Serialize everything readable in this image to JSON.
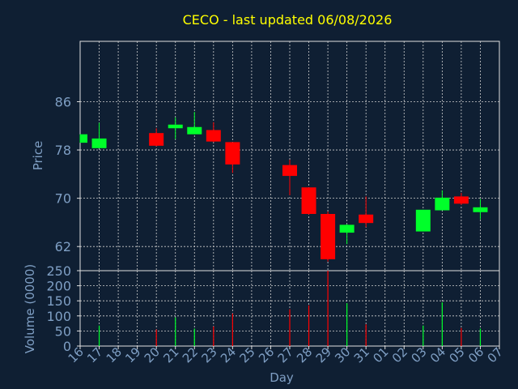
{
  "chart_data": {
    "type": "candlestick",
    "title": "CECO - last updated 06/08/2026",
    "xlabel": "Day",
    "colors": {
      "background": "#0f1f33",
      "axis": "#e0e0e0",
      "grid": "#d0d0d0",
      "text": "#7f9fc4",
      "title": "#ffff00",
      "up": "#00ff2a",
      "down": "#ff0000"
    },
    "x_ticks": [
      "16",
      "17",
      "18",
      "19",
      "20",
      "21",
      "22",
      "23",
      "24",
      "25",
      "26",
      "27",
      "28",
      "29",
      "30",
      "31",
      "01",
      "02",
      "03",
      "04",
      "05",
      "06",
      "07"
    ],
    "price_panel": {
      "ylabel": "Price",
      "ylim": [
        58,
        96
      ],
      "yticks": [
        62,
        70,
        78,
        86
      ],
      "grid": true,
      "candles": [
        {
          "day": "16",
          "open": 79.2,
          "high": 80.6,
          "low": 79.2,
          "close": 80.6
        },
        {
          "day": "17",
          "open": 78.3,
          "high": 82.5,
          "low": 78.3,
          "close": 79.9
        },
        {
          "day": "20",
          "open": 80.8,
          "high": 81.6,
          "low": 78.6,
          "close": 78.7
        },
        {
          "day": "21",
          "open": 81.6,
          "high": 83.4,
          "low": 79.8,
          "close": 82.2
        },
        {
          "day": "22",
          "open": 80.6,
          "high": 84.3,
          "low": 80.6,
          "close": 81.8
        },
        {
          "day": "23",
          "open": 81.3,
          "high": 82.6,
          "low": 79.3,
          "close": 79.4
        },
        {
          "day": "24",
          "open": 79.3,
          "high": 79.3,
          "low": 74.2,
          "close": 75.6
        },
        {
          "day": "27",
          "open": 75.5,
          "high": 76.4,
          "low": 70.5,
          "close": 73.7
        },
        {
          "day": "28",
          "open": 71.8,
          "high": 71.8,
          "low": 67.3,
          "close": 67.4
        },
        {
          "day": "29",
          "open": 67.4,
          "high": 67.8,
          "low": 59.5,
          "close": 59.9
        },
        {
          "day": "30",
          "open": 64.3,
          "high": 65.7,
          "low": 62.4,
          "close": 65.6
        },
        {
          "day": "31",
          "open": 67.3,
          "high": 70.3,
          "low": 65.2,
          "close": 65.9
        },
        {
          "day": "03",
          "open": 64.5,
          "high": 68.1,
          "low": 64.5,
          "close": 68.1
        },
        {
          "day": "04",
          "open": 68.0,
          "high": 71.3,
          "low": 68.0,
          "close": 70.1
        },
        {
          "day": "05",
          "open": 70.3,
          "high": 70.9,
          "low": 68.9,
          "close": 69.1
        },
        {
          "day": "06",
          "open": 67.7,
          "high": 69.9,
          "low": 66.5,
          "close": 68.5
        }
      ]
    },
    "volume_panel": {
      "ylabel": "Volume (0000)",
      "ylim": [
        0,
        250
      ],
      "yticks": [
        0,
        50,
        100,
        150,
        200,
        250
      ],
      "grid": true,
      "bars": [
        {
          "day": "16",
          "value": 0,
          "direction": "up"
        },
        {
          "day": "17",
          "value": 68,
          "direction": "up"
        },
        {
          "day": "20",
          "value": 55,
          "direction": "down"
        },
        {
          "day": "21",
          "value": 95,
          "direction": "up"
        },
        {
          "day": "22",
          "value": 58,
          "direction": "up"
        },
        {
          "day": "23",
          "value": 65,
          "direction": "down"
        },
        {
          "day": "24",
          "value": 108,
          "direction": "down"
        },
        {
          "day": "27",
          "value": 122,
          "direction": "down"
        },
        {
          "day": "28",
          "value": 135,
          "direction": "down"
        },
        {
          "day": "29",
          "value": 250,
          "direction": "down"
        },
        {
          "day": "30",
          "value": 142,
          "direction": "up"
        },
        {
          "day": "31",
          "value": 72,
          "direction": "down"
        },
        {
          "day": "03",
          "value": 68,
          "direction": "up"
        },
        {
          "day": "04",
          "value": 145,
          "direction": "up"
        },
        {
          "day": "05",
          "value": 60,
          "direction": "down"
        },
        {
          "day": "06",
          "value": 58,
          "direction": "up"
        }
      ]
    }
  }
}
